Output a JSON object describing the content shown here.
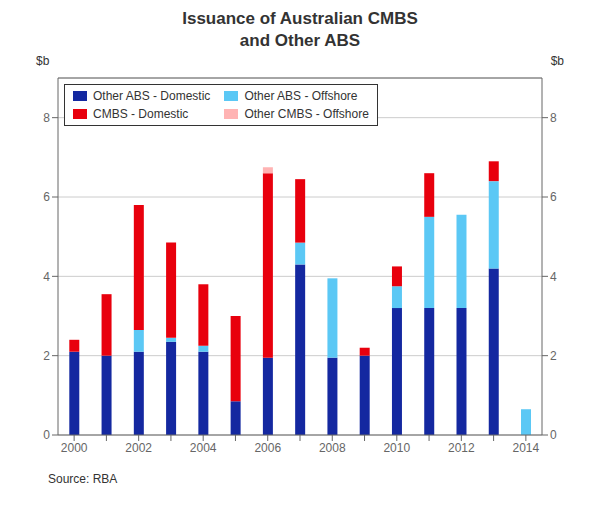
{
  "chart_data": {
    "type": "bar",
    "title": "Issuance of Australian CMBS\nand Other ABS",
    "ylabel": "$b",
    "y2label": "$b",
    "annotations": [
      "Source: RBA"
    ],
    "categories": [
      "2000",
      null,
      "2002",
      null,
      "2004",
      null,
      "2006",
      null,
      "2008",
      null,
      "2010",
      null,
      "2012",
      null,
      "2014"
    ],
    "series": [
      {
        "name": "Other ABS - Domestic",
        "color": "#1428a0",
        "values": [
          2.1,
          2.0,
          2.1,
          2.35,
          2.1,
          0.85,
          1.95,
          4.3,
          1.95,
          2.0,
          3.2,
          3.2,
          3.2,
          4.2,
          0.0
        ]
      },
      {
        "name": "Other ABS - Offshore",
        "color": "#5bc8f5",
        "values": [
          0.0,
          0.0,
          0.55,
          0.1,
          0.15,
          0.0,
          0.0,
          0.55,
          2.0,
          0.0,
          0.55,
          2.3,
          2.35,
          2.2,
          0.65
        ]
      },
      {
        "name": "CMBS - Domestic",
        "color": "#e8000d",
        "values": [
          0.3,
          1.55,
          3.15,
          2.4,
          1.55,
          2.15,
          4.65,
          1.6,
          0.0,
          0.2,
          0.5,
          1.1,
          0.0,
          0.5,
          0.0
        ]
      },
      {
        "name": "Other CMBS - Offshore",
        "color": "#ffb3b3",
        "values": [
          0.0,
          0.0,
          0.0,
          0.0,
          0.0,
          0.0,
          0.15,
          0.0,
          0.0,
          0.0,
          0.0,
          0.0,
          0.0,
          0.0,
          0.0
        ]
      }
    ],
    "ylim": [
      0,
      9
    ],
    "yticks": [
      0,
      2,
      4,
      6,
      8
    ],
    "y2lim": [
      0,
      9
    ],
    "y2ticks": [
      0,
      2,
      4,
      6,
      8
    ],
    "stacked": true,
    "grid": true,
    "legend": "upper left"
  }
}
